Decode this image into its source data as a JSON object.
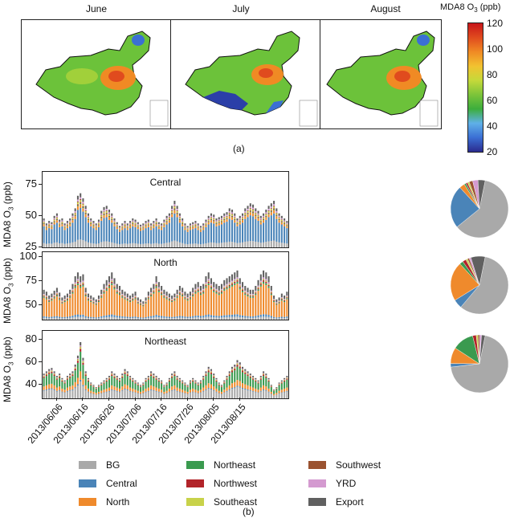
{
  "panel_a": {
    "label": "(a)",
    "maps": [
      {
        "title": "June"
      },
      {
        "title": "July"
      },
      {
        "title": "August"
      }
    ],
    "colorbar": {
      "title": "MDA8 O3 (ppb)",
      "title_main": "MDA8 O",
      "title_sub": "3",
      "title_unit": " (ppb)",
      "ticks": [
        "120",
        "100",
        "80",
        "60",
        "40",
        "20"
      ],
      "range": [
        20,
        120
      ],
      "colors": [
        "#2b2b8f",
        "#3b6fd4",
        "#5fb0e8",
        "#3cae3c",
        "#7dc43a",
        "#c5d93a",
        "#f2c230",
        "#f08a24",
        "#e04b1e",
        "#c8161a"
      ]
    }
  },
  "panel_b": {
    "label": "(b)",
    "ylabel_main": "MDA8 O",
    "ylabel_sub": "3",
    "ylabel_unit": " (ppb)"
  },
  "chart_data": [
    {
      "type": "bar",
      "stacked": true,
      "title": "Central",
      "ylabel": "MDA8 O3 (ppb)",
      "ylim": [
        25,
        85
      ],
      "yticks": [
        25,
        50,
        75
      ],
      "x_start": "2013-06-01",
      "x_end": "2013-08-31",
      "series_order": [
        "BG",
        "Central",
        "North",
        "Northeast",
        "Northwest",
        "Southeast",
        "Southwest",
        "YRD",
        "Export"
      ],
      "totals": [
        48,
        44,
        46,
        45,
        50,
        52,
        47,
        48,
        44,
        46,
        48,
        52,
        56,
        66,
        68,
        64,
        58,
        52,
        48,
        46,
        44,
        47,
        54,
        57,
        58,
        55,
        52,
        48,
        45,
        42,
        44,
        46,
        44,
        46,
        48,
        47,
        45,
        43,
        44,
        46,
        47,
        44,
        46,
        48,
        45,
        44,
        47,
        50,
        52,
        58,
        62,
        58,
        52,
        48,
        44,
        42,
        44,
        45,
        46,
        44,
        42,
        44,
        47,
        50,
        52,
        51,
        48,
        49,
        50,
        52,
        53,
        56,
        55,
        52,
        48,
        50,
        52,
        56,
        58,
        60,
        59,
        56,
        54,
        50,
        52,
        55,
        58,
        60,
        62,
        56,
        52,
        50,
        48,
        46
      ],
      "share": {
        "BG": 0.08,
        "Central": 0.32,
        "North": 0.04,
        "Northeast": 0.01,
        "Northwest": 0.01,
        "Southeast": 0.02,
        "Southwest": 0.01,
        "YRD": 0.02,
        "Export": 0.04
      },
      "pie": {
        "BG": 61,
        "Central": 24,
        "North": 3,
        "Northeast": 1,
        "Northwest": 1,
        "Southeast": 1,
        "Southwest": 2,
        "YRD": 3,
        "Export": 4
      }
    },
    {
      "type": "bar",
      "stacked": true,
      "title": "North",
      "ylabel": "MDA8 O3 (ppb)",
      "ylim": [
        35,
        105
      ],
      "yticks": [
        50,
        75,
        100
      ],
      "x_start": "2013-06-01",
      "x_end": "2013-08-31",
      "series_order": [
        "BG",
        "Central",
        "North",
        "Northeast",
        "Northwest",
        "Southeast",
        "Southwest",
        "YRD",
        "Export"
      ],
      "totals": [
        66,
        64,
        60,
        62,
        65,
        68,
        63,
        58,
        60,
        62,
        66,
        72,
        80,
        84,
        80,
        82,
        68,
        62,
        60,
        58,
        56,
        60,
        66,
        72,
        76,
        80,
        84,
        78,
        72,
        70,
        66,
        64,
        62,
        60,
        62,
        64,
        58,
        56,
        54,
        58,
        64,
        68,
        72,
        80,
        74,
        70,
        66,
        64,
        62,
        60,
        62,
        66,
        70,
        68,
        64,
        62,
        64,
        68,
        72,
        74,
        70,
        72,
        80,
        84,
        78,
        74,
        72,
        70,
        72,
        76,
        78,
        80,
        82,
        84,
        86,
        78,
        74,
        70,
        68,
        66,
        66,
        70,
        76,
        82,
        86,
        84,
        80,
        70,
        60,
        56,
        58,
        62,
        60,
        64
      ],
      "share": {
        "BG": 0.06,
        "Central": 0.05,
        "North": 0.62,
        "Northeast": 0.04,
        "Northwest": 0.03,
        "Southeast": 0.02,
        "Southwest": 0.01,
        "YRD": 0.03,
        "Export": 0.14
      },
      "pie": {
        "BG": 58,
        "Central": 5,
        "North": 22,
        "Northeast": 2,
        "Northwest": 2,
        "Southeast": 1,
        "Southwest": 1,
        "YRD": 1,
        "Export": 8
      }
    },
    {
      "type": "bar",
      "stacked": true,
      "title": "Northeast",
      "ylabel": "MDA8 O3 (ppb)",
      "ylim": [
        28,
        88
      ],
      "yticks": [
        40,
        60,
        80
      ],
      "x_start": "2013-06-01",
      "x_end": "2013-08-31",
      "series_order": [
        "BG",
        "Central",
        "North",
        "Northeast",
        "Northwest",
        "Southeast",
        "Southwest",
        "YRD",
        "Export"
      ],
      "totals": [
        50,
        52,
        54,
        55,
        52,
        48,
        50,
        46,
        44,
        48,
        50,
        52,
        58,
        66,
        78,
        64,
        52,
        46,
        42,
        40,
        38,
        40,
        42,
        44,
        46,
        48,
        52,
        50,
        48,
        46,
        50,
        54,
        52,
        48,
        46,
        44,
        42,
        40,
        42,
        46,
        48,
        52,
        50,
        48,
        46,
        44,
        40,
        42,
        46,
        50,
        52,
        48,
        46,
        44,
        42,
        40,
        44,
        46,
        44,
        42,
        44,
        48,
        52,
        56,
        54,
        50,
        46,
        42,
        40,
        44,
        48,
        52,
        56,
        58,
        62,
        60,
        56,
        54,
        52,
        50,
        48,
        46,
        44,
        48,
        52,
        50,
        46,
        40,
        36,
        38,
        42,
        44,
        46,
        48
      ],
      "share": {
        "BG": 0.3,
        "Central": 0.03,
        "North": 0.15,
        "Northeast": 0.35,
        "Northwest": 0.05,
        "Southeast": 0.03,
        "Southwest": 0.01,
        "YRD": 0.02,
        "Export": 0.06
      },
      "pie": {
        "BG": 70,
        "Central": 2,
        "North": 9,
        "Northeast": 12,
        "Northwest": 2,
        "Southeast": 1,
        "Southwest": 1,
        "YRD": 1,
        "Export": 2
      }
    }
  ],
  "x_axis": {
    "ticks": [
      "2013/06/06",
      "2013/06/16",
      "2013/06/26",
      "2013/07/06",
      "2013/07/16",
      "2013/07/26",
      "2013/08/05",
      "2013/08/15"
    ],
    "tick_day_index": [
      5,
      15,
      25,
      35,
      45,
      55,
      65,
      75
    ]
  },
  "legend": {
    "items": [
      {
        "name": "BG",
        "color": "#a9a9a9"
      },
      {
        "name": "Central",
        "color": "#4a84b8"
      },
      {
        "name": "North",
        "color": "#ef8a2c"
      },
      {
        "name": "Northeast",
        "color": "#3a9a4f"
      },
      {
        "name": "Northwest",
        "color": "#b2242a"
      },
      {
        "name": "Southeast",
        "color": "#c8d24a"
      },
      {
        "name": "Southwest",
        "color": "#9a5230"
      },
      {
        "name": "YRD",
        "color": "#d49ad0"
      },
      {
        "name": "Export",
        "color": "#606060"
      }
    ]
  }
}
